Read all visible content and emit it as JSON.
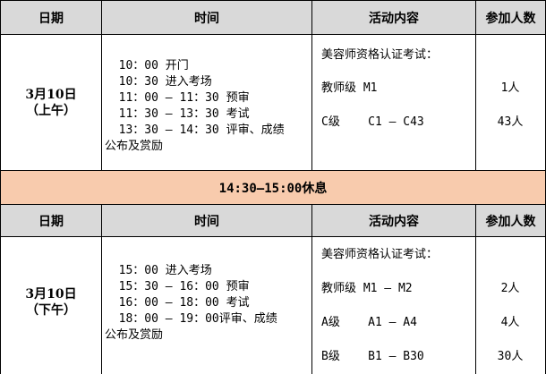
{
  "headers": [
    "日期",
    "时间",
    "活动内容",
    "参加人数"
  ],
  "morning": {
    "date": "3月10日",
    "period": "（上午）",
    "time_lines": [
      "  10：00 开门",
      "  10：30 进入考场",
      "  11：00 — 11：30 预审",
      "  11：30 — 13：30 考试",
      "  13：30 — 14：30 评审、成绩",
      "公布及赏励"
    ],
    "activity_title": "美容师资格认证考试：",
    "activities": [
      {
        "level": "教师级 M1",
        "count": "1人"
      },
      {
        "level": "C级    C1 — C43",
        "count": "43人"
      }
    ]
  },
  "break": {
    "label": "14:30—15:00休息",
    "color": "#f8cbad"
  },
  "afternoon": {
    "date": "3月10日",
    "period": "（下午）",
    "time_lines": [
      "  15：00 进入考场",
      "  15：30 — 16：00 预审",
      "  16：00 — 18：00 考试",
      "  18：00 — 19：00评审、成绩",
      "公布及赏励"
    ],
    "activity_title": "美容师资格认证考试：",
    "activities": [
      {
        "level": "教师级 M1 — M2",
        "count": "2人"
      },
      {
        "level": "A级    A1 — A4",
        "count": "4人"
      },
      {
        "level": "B级    B1 — B30",
        "count": "30人"
      }
    ]
  },
  "header_color": "#d9d9d9"
}
